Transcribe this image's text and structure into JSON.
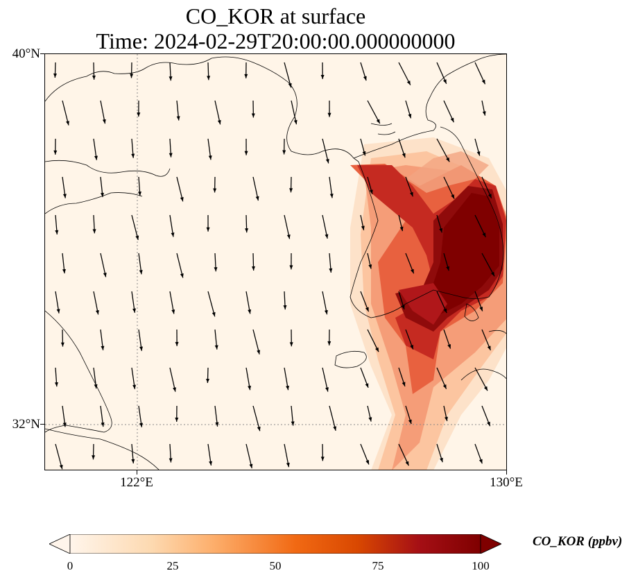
{
  "title": {
    "line1": "CO_KOR at surface",
    "line2": "Time: 2024-02-29T20:00:00.000000000"
  },
  "axes": {
    "lat_ticks": [
      "40°N",
      "32°N"
    ],
    "lon_ticks": [
      "122°E",
      "130°E"
    ],
    "lon_range": [
      120,
      130
    ],
    "lat_range": [
      31,
      40
    ],
    "gridlines": "dotted at 122°E and 32°N"
  },
  "colorbar": {
    "label": "CO_KOR (ppbv)",
    "ticks": [
      "0",
      "25",
      "50",
      "75",
      "100"
    ],
    "range": [
      0,
      100
    ],
    "extend": "both",
    "colormap": [
      "#fff5eb",
      "#fdd9b0",
      "#fdae6b",
      "#f16913",
      "#d94801",
      "#a50f15",
      "#7f0000"
    ]
  },
  "chart_data": {
    "type": "heatmap",
    "variable": "CO_KOR",
    "units": "ppbv",
    "plume": "highest concentration (>100 ppbv) over the southern Korean peninsula, extending southwest over the Yellow Sea toward 31°N",
    "wind_vectors": "mostly southward / south-southeastward arrows across the domain"
  }
}
